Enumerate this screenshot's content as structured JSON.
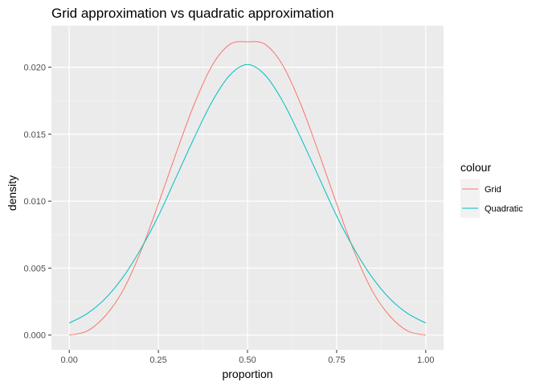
{
  "chart_data": {
    "type": "line",
    "title": "Grid approximation vs quadratic approximation",
    "xlabel": "proportion",
    "ylabel": "density",
    "xlim": [
      -0.05,
      1.05
    ],
    "ylim": [
      -0.0011,
      0.0231
    ],
    "x_ticks": [
      0,
      0.25,
      0.5,
      0.75,
      1
    ],
    "x_tick_labels": [
      "0.00",
      "0.25",
      "0.50",
      "0.75",
      "1.00"
    ],
    "y_ticks": [
      0,
      0.005,
      0.01,
      0.015,
      0.02
    ],
    "y_tick_labels": [
      "0.000",
      "0.005",
      "0.010",
      "0.015",
      "0.020"
    ],
    "grid": true,
    "legend": {
      "title": "colour",
      "position": "right"
    },
    "series": [
      {
        "name": "Grid",
        "color": "#F8766D",
        "x": [
          0,
          0.05,
          0.1,
          0.15,
          0.2,
          0.25,
          0.3,
          0.35,
          0.4,
          0.45,
          0.5,
          0.55,
          0.6,
          0.65,
          0.7,
          0.75,
          0.8,
          0.85,
          0.9,
          0.95,
          1
        ],
        "values": [
          0,
          0.0003,
          0.0014,
          0.0033,
          0.0062,
          0.0098,
          0.0136,
          0.0172,
          0.0201,
          0.0217,
          0.0219,
          0.0217,
          0.0201,
          0.0172,
          0.0136,
          0.0098,
          0.0062,
          0.0033,
          0.0014,
          0.0003,
          0
        ]
      },
      {
        "name": "Quadratic",
        "color": "#00BFC4",
        "x": [
          0,
          0.05,
          0.1,
          0.15,
          0.2,
          0.25,
          0.3,
          0.35,
          0.4,
          0.45,
          0.5,
          0.55,
          0.6,
          0.65,
          0.7,
          0.75,
          0.8,
          0.85,
          0.9,
          0.95,
          1
        ],
        "values": [
          0.0009,
          0.0016,
          0.0027,
          0.0043,
          0.0064,
          0.0089,
          0.0118,
          0.0147,
          0.0174,
          0.0194,
          0.0202,
          0.0194,
          0.0174,
          0.0147,
          0.0118,
          0.0089,
          0.0064,
          0.0043,
          0.0027,
          0.0016,
          0.0009
        ]
      }
    ]
  }
}
